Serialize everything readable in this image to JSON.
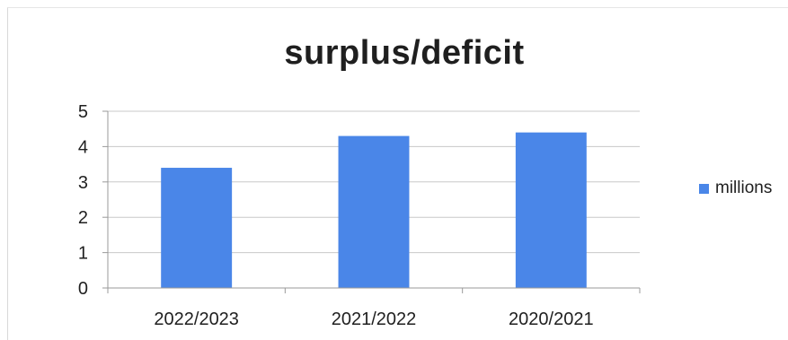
{
  "chart_data": {
    "type": "bar",
    "title": "surplus/deficit",
    "categories": [
      "2022/2023",
      "2021/2022",
      "2020/2021"
    ],
    "series": [
      {
        "name": "millions",
        "values": [
          3.4,
          4.3,
          4.4
        ],
        "color": "#4a86e8"
      }
    ],
    "xlabel": "",
    "ylabel": "",
    "ylim": [
      0,
      5
    ],
    "yticks": [
      "0",
      "1",
      "2",
      "3",
      "4",
      "5"
    ],
    "grid": true,
    "legend_position": "right"
  }
}
